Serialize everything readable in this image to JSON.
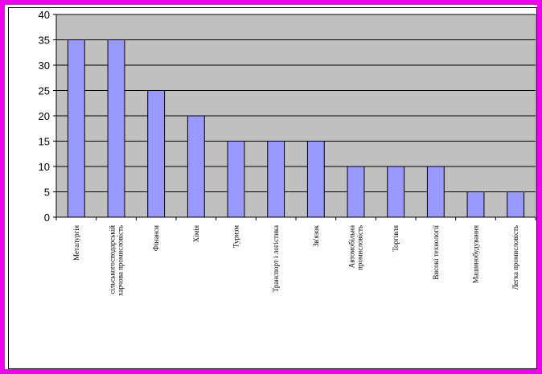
{
  "colors": {
    "frame": "#ee00ee",
    "plot_background": "#c0c0c0",
    "bar_fill": "#9999ff",
    "bar_stroke": "#000000",
    "gridline": "#000000"
  },
  "chart_data": {
    "type": "bar",
    "title": "",
    "xlabel": "",
    "ylabel": "",
    "ylim": [
      0,
      40
    ],
    "yticks": [
      0,
      5,
      10,
      15,
      20,
      25,
      30,
      35,
      40
    ],
    "grid": true,
    "legend": "none",
    "categories": [
      "Металургія",
      "сільськогосподарській харчова промисловість",
      "Фінанси",
      "Хімія",
      "Туризм",
      "Транспорт і логістика",
      "Зв'язок",
      "Автомобільна промисловість",
      "Торгівля",
      "Високі технології",
      "Машинобудування",
      "Легка промисловість"
    ],
    "values": [
      35,
      35,
      25,
      20,
      15,
      15,
      15,
      10,
      10,
      10,
      5,
      5
    ]
  }
}
